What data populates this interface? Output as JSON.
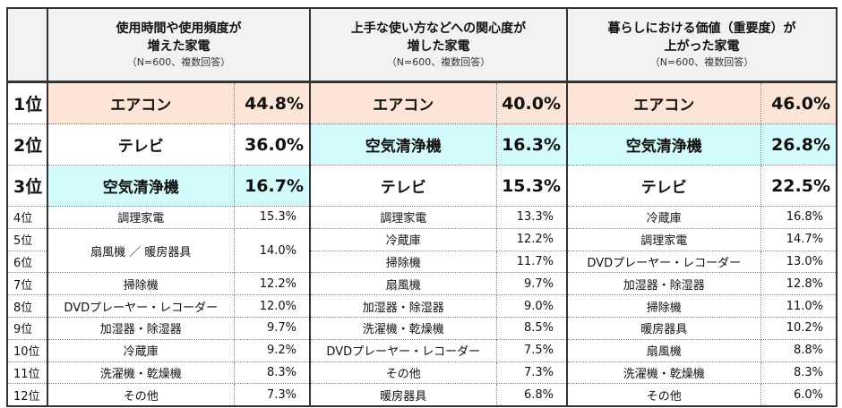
{
  "colors": {
    "first": "#fce4d6",
    "highlight": "#d4fbfb",
    "header": "#f2f2f2"
  },
  "chart_data": {
    "type": "table",
    "ranks": [
      "1位",
      "2位",
      "3位",
      "4位",
      "5位",
      "6位",
      "7位",
      "8位",
      "9位",
      "10位",
      "11位",
      "12位"
    ],
    "groups": [
      {
        "title_line1": "使用時間や使用頻度が",
        "title_line2": "増えた家電",
        "note": "（N=600、複数回答）",
        "rows": [
          {
            "item": "エアコン",
            "value": "44.8%",
            "color": "first"
          },
          {
            "item": "テレビ",
            "value": "36.0%"
          },
          {
            "item": "空気清浄機",
            "value": "16.7%",
            "color": "highlight"
          },
          {
            "item": "調理家電",
            "value": "15.3%"
          },
          {
            "item": "扇風機 ／ 暖房器具",
            "value": "14.0%",
            "span": 2
          },
          {
            "item": "掃除機",
            "value": "12.2%"
          },
          {
            "item": "DVDプレーヤー・レコーダー",
            "value": "12.0%"
          },
          {
            "item": "加湿器・除湿器",
            "value": "9.7%"
          },
          {
            "item": "冷蔵庫",
            "value": "9.2%"
          },
          {
            "item": "洗濯機・乾燥機",
            "value": "8.3%"
          },
          {
            "item": "その他",
            "value": "7.3%"
          }
        ]
      },
      {
        "title_line1": "上手な使い方などへの関心度が",
        "title_line2": "増した家電",
        "note": "（N=600、複数回答）",
        "rows": [
          {
            "item": "エアコン",
            "value": "40.0%",
            "color": "first"
          },
          {
            "item": "空気清浄機",
            "value": "16.3%",
            "color": "highlight"
          },
          {
            "item": "テレビ",
            "value": "15.3%"
          },
          {
            "item": "調理家電",
            "value": "13.3%"
          },
          {
            "item": "冷蔵庫",
            "value": "12.2%"
          },
          {
            "item": "掃除機",
            "value": "11.7%"
          },
          {
            "item": "扇風機",
            "value": "9.7%"
          },
          {
            "item": "加湿器・除湿器",
            "value": "9.0%"
          },
          {
            "item": "洗濯機・乾燥機",
            "value": "8.5%"
          },
          {
            "item": "DVDプレーヤー・レコーダー",
            "value": "7.5%"
          },
          {
            "item": "その他",
            "value": "7.3%"
          },
          {
            "item": "暖房器具",
            "value": "6.8%"
          }
        ]
      },
      {
        "title_line1": "暮らしにおける価値（重要度）が",
        "title_line2": "上がった家電",
        "note": "（N=600、複数回答）",
        "rows": [
          {
            "item": "エアコン",
            "value": "46.0%",
            "color": "first"
          },
          {
            "item": "空気清浄機",
            "value": "26.8%",
            "color": "highlight"
          },
          {
            "item": "テレビ",
            "value": "22.5%"
          },
          {
            "item": "冷蔵庫",
            "value": "16.8%"
          },
          {
            "item": "調理家電",
            "value": "14.7%"
          },
          {
            "item": "DVDプレーヤー・レコーダー",
            "value": "13.0%"
          },
          {
            "item": "加湿器・除湿器",
            "value": "12.8%"
          },
          {
            "item": "掃除機",
            "value": "11.0%"
          },
          {
            "item": "暖房器具",
            "value": "10.2%"
          },
          {
            "item": "扇風機",
            "value": "8.8%"
          },
          {
            "item": "洗濯機・乾燥機",
            "value": "8.3%"
          },
          {
            "item": "その他",
            "value": "6.0%"
          }
        ]
      }
    ]
  }
}
